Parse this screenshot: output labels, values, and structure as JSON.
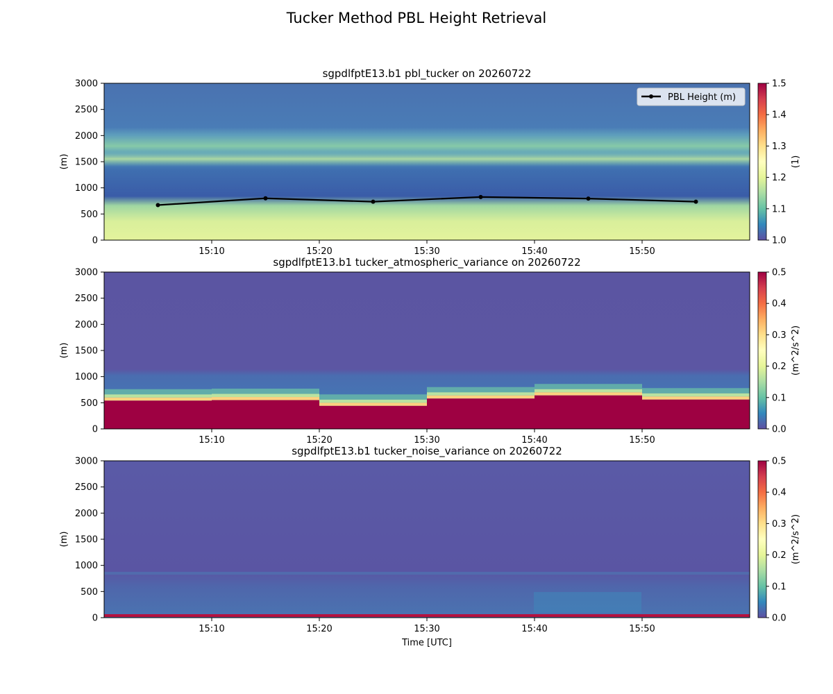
{
  "figure": {
    "title": "Tucker Method PBL Height Retrieval",
    "xlabel": "Time [UTC]"
  },
  "chart_data": [
    {
      "type": "heatmap",
      "title": "sgpdlfptE13.b1 pbl_tucker on 20260722",
      "ylabel": "(m)",
      "ylim": [
        0,
        3000
      ],
      "yticks": [
        0,
        500,
        1000,
        1500,
        2000,
        2500,
        3000
      ],
      "xticks": [
        "15:10",
        "15:20",
        "15:30",
        "15:40",
        "15:50"
      ],
      "colorbar": {
        "label": "(1)",
        "range": [
          1.0,
          1.5
        ],
        "ticks": [
          "1.0",
          "1.1",
          "1.2",
          "1.3",
          "1.4",
          "1.5"
        ],
        "colormap": "Spectral_r"
      },
      "legend": {
        "position": "upper-right",
        "entries": [
          "PBL Height (m)"
        ]
      },
      "series": [
        {
          "name": "PBL Height (m)",
          "color": "#000000",
          "x": [
            "15:05",
            "15:15",
            "15:25",
            "15:35",
            "15:45",
            "15:55"
          ],
          "y": [
            670,
            800,
            735,
            825,
            795,
            735
          ]
        }
      ]
    },
    {
      "type": "heatmap",
      "title": "sgpdlfptE13.b1 tucker_atmospheric_variance on 20260722",
      "ylabel": "(m)",
      "ylim": [
        0,
        3000
      ],
      "yticks": [
        0,
        500,
        1000,
        1500,
        2000,
        2500,
        3000
      ],
      "xticks": [
        "15:10",
        "15:20",
        "15:30",
        "15:40",
        "15:50"
      ],
      "colorbar": {
        "label": "(m^2/s^2)",
        "range": [
          0.0,
          0.5
        ],
        "ticks": [
          "0.0",
          "0.1",
          "0.2",
          "0.3",
          "0.4",
          "0.5"
        ],
        "colormap": "Spectral_r"
      },
      "blocks": [
        {
          "start": "15:00",
          "end": "15:10",
          "top": 540
        },
        {
          "start": "15:10",
          "end": "15:20",
          "top": 550
        },
        {
          "start": "15:20",
          "end": "15:30",
          "top": 440
        },
        {
          "start": "15:30",
          "end": "15:40",
          "top": 580
        },
        {
          "start": "15:40",
          "end": "15:50",
          "top": 640
        },
        {
          "start": "15:50",
          "end": "16:00",
          "top": 560
        }
      ]
    },
    {
      "type": "heatmap",
      "title": "sgpdlfptE13.b1 tucker_noise_variance on 20260722",
      "ylabel": "(m)",
      "xlabel": "Time [UTC]",
      "ylim": [
        0,
        3000
      ],
      "yticks": [
        0,
        500,
        1000,
        1500,
        2000,
        2500,
        3000
      ],
      "xticks": [
        "15:10",
        "15:20",
        "15:30",
        "15:40",
        "15:50"
      ],
      "colorbar": {
        "label": "(m^2/s^2)",
        "range": [
          0.0,
          0.5
        ],
        "ticks": [
          "0.0",
          "0.1",
          "0.2",
          "0.3",
          "0.4",
          "0.5"
        ],
        "colormap": "Spectral_r"
      }
    }
  ]
}
